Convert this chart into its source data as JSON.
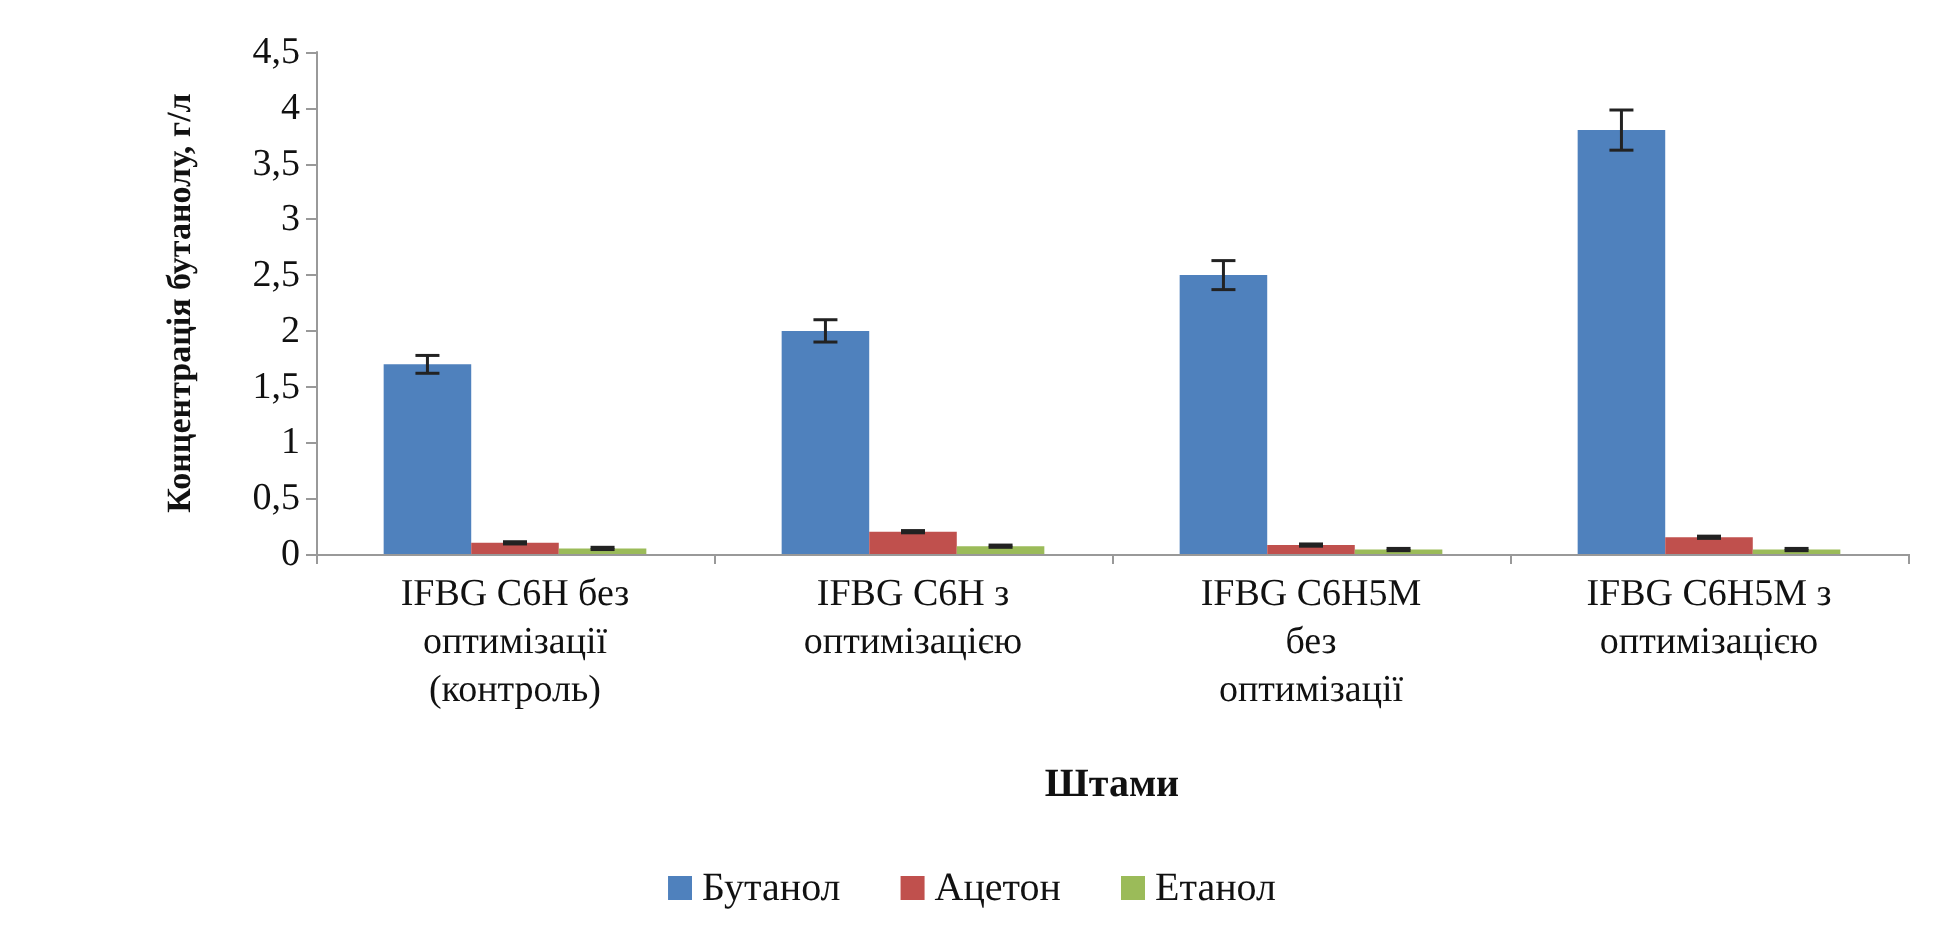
{
  "chart_data": {
    "type": "bar",
    "xlabel": "Штами",
    "ylabel": "Концентрація бутанолу, г/л",
    "categories": [
      "IFBG C6H без оптимізації (контроль)",
      "IFBG C6H з оптимізацією",
      "IFBG C6H5M без оптимізації",
      "IFBG C6H5M з оптимізацією"
    ],
    "series": [
      {
        "name": "Бутанол",
        "color": "#4f81bd",
        "values": [
          1.7,
          2.0,
          2.5,
          3.8
        ],
        "errors": [
          0.08,
          0.1,
          0.13,
          0.18
        ]
      },
      {
        "name": "Ацетон",
        "color": "#c0504d",
        "values": [
          0.1,
          0.2,
          0.08,
          0.15
        ],
        "errors": [
          0.01,
          0.01,
          0.01,
          0.01
        ]
      },
      {
        "name": "Етанол",
        "color": "#9bbb59",
        "values": [
          0.05,
          0.07,
          0.04,
          0.04
        ],
        "errors": [
          0.01,
          0.01,
          0.01,
          0.01
        ]
      }
    ],
    "ylim": [
      0,
      4.5
    ],
    "yticks": [
      0,
      {
        "value": 0.5,
        "label": "0,5"
      },
      1,
      {
        "value": 1.5,
        "label": "1,5"
      },
      2,
      {
        "value": 2.5,
        "label": "2,5"
      },
      3,
      {
        "value": 3.5,
        "label": "3,5"
      },
      4,
      {
        "value": 4.5,
        "label": "4,5"
      }
    ],
    "grid": false,
    "legend": "bottom"
  }
}
